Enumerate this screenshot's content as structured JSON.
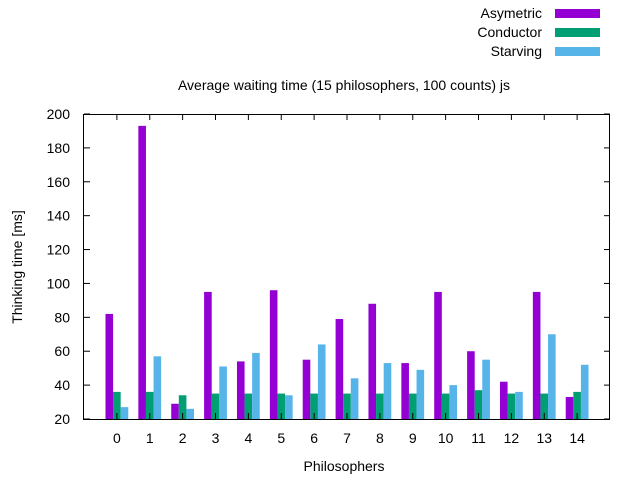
{
  "chart_data": {
    "type": "bar",
    "title": "Average waiting time (15 philosophers, 100 counts) js",
    "xlabel": "Philosophers",
    "ylabel": "Thinking time [ms]",
    "ylim": [
      20,
      200
    ],
    "yticks": [
      20,
      40,
      60,
      80,
      100,
      120,
      140,
      160,
      180,
      200
    ],
    "categories": [
      "0",
      "1",
      "2",
      "3",
      "4",
      "5",
      "6",
      "7",
      "8",
      "9",
      "10",
      "11",
      "12",
      "13",
      "14"
    ],
    "legend_position": "top-right",
    "grid": false,
    "series": [
      {
        "name": "Asymetric",
        "color": "#9400d3",
        "values": [
          82,
          193,
          29,
          95,
          54,
          96,
          55,
          79,
          88,
          53,
          95,
          60,
          42,
          95,
          33
        ]
      },
      {
        "name": "Conductor",
        "color": "#009e73",
        "values": [
          36,
          36,
          34,
          35,
          35,
          35,
          35,
          35,
          35,
          35,
          35,
          37,
          35,
          35,
          36
        ]
      },
      {
        "name": "Starving",
        "color": "#56b4e9",
        "values": [
          27,
          57,
          26,
          51,
          59,
          34,
          64,
          44,
          53,
          49,
          40,
          55,
          36,
          70,
          52
        ]
      }
    ]
  }
}
